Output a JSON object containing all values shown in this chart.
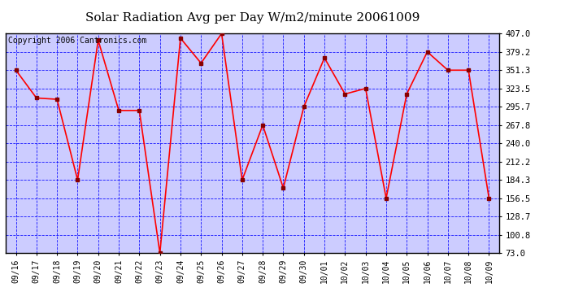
{
  "title": "Solar Radiation Avg per Day W/m2/minute 20061009",
  "copyright_text": "Copyright 2006 Cantronics.com",
  "x_labels": [
    "09/16",
    "09/17",
    "09/18",
    "09/19",
    "09/20",
    "09/21",
    "09/22",
    "09/23",
    "09/24",
    "09/25",
    "09/26",
    "09/27",
    "09/28",
    "09/29",
    "09/30",
    "10/01",
    "10/02",
    "10/03",
    "10/04",
    "10/05",
    "10/06",
    "10/07",
    "10/08",
    "10/09"
  ],
  "y_values": [
    351.3,
    309.0,
    307.0,
    184.3,
    397.0,
    290.0,
    290.0,
    73.0,
    400.0,
    362.0,
    407.0,
    184.3,
    267.8,
    172.0,
    295.7,
    370.0,
    315.0,
    323.5,
    156.5,
    315.0,
    379.2,
    351.3,
    351.3,
    156.5
  ],
  "y_min": 73.0,
  "y_max": 407.0,
  "y_ticks": [
    73.0,
    100.8,
    128.7,
    156.5,
    184.3,
    212.2,
    240.0,
    267.8,
    295.7,
    323.5,
    351.3,
    379.2,
    407.0
  ],
  "line_color": "red",
  "marker_color": "#880000",
  "plot_bg_color": "#CCCCFF",
  "outer_bg_color": "white",
  "grid_color_h": "blue",
  "grid_color_v": "blue",
  "title_fontsize": 11,
  "copyright_fontsize": 7,
  "tick_fontsize": 7,
  "ytick_fontsize": 7.5
}
